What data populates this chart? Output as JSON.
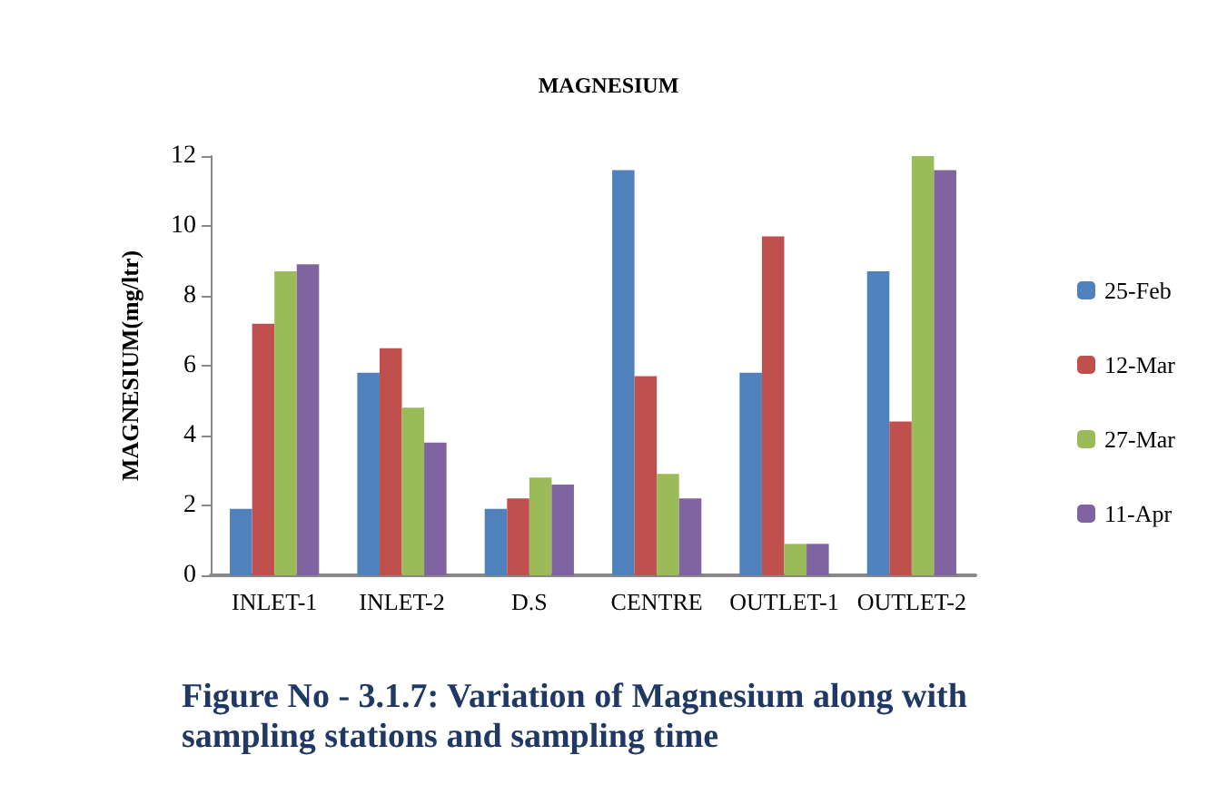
{
  "chart_data": {
    "type": "bar",
    "title": "MAGNESIUM",
    "ylabel": "MAGNESIUM(mg/ltr)",
    "categories": [
      "INLET-1",
      "INLET-2",
      "D.S",
      "CENTRE",
      "OUTLET-1",
      "OUTLET-2"
    ],
    "series": [
      {
        "name": "25-Feb",
        "color": "#4f81bd",
        "values": [
          1.9,
          5.8,
          1.9,
          11.6,
          5.8,
          8.7
        ]
      },
      {
        "name": "12-Mar",
        "color": "#c0504d",
        "values": [
          7.2,
          6.5,
          2.2,
          5.7,
          9.7,
          4.4
        ]
      },
      {
        "name": "27-Mar",
        "color": "#9bbb59",
        "values": [
          8.7,
          4.8,
          2.8,
          2.9,
          0.9,
          12
        ]
      },
      {
        "name": "11-Apr",
        "color": "#8064a2",
        "values": [
          8.9,
          3.8,
          2.6,
          2.2,
          0.9,
          11.6
        ]
      }
    ],
    "ylim": [
      0,
      12
    ],
    "yticks": [
      0,
      2,
      4,
      6,
      8,
      10,
      12
    ],
    "grid": false,
    "legend": "right",
    "annotations": [
      "Figure No - 3.1.7: Variation of Magnesium along with sampling stations and sampling time"
    ]
  }
}
